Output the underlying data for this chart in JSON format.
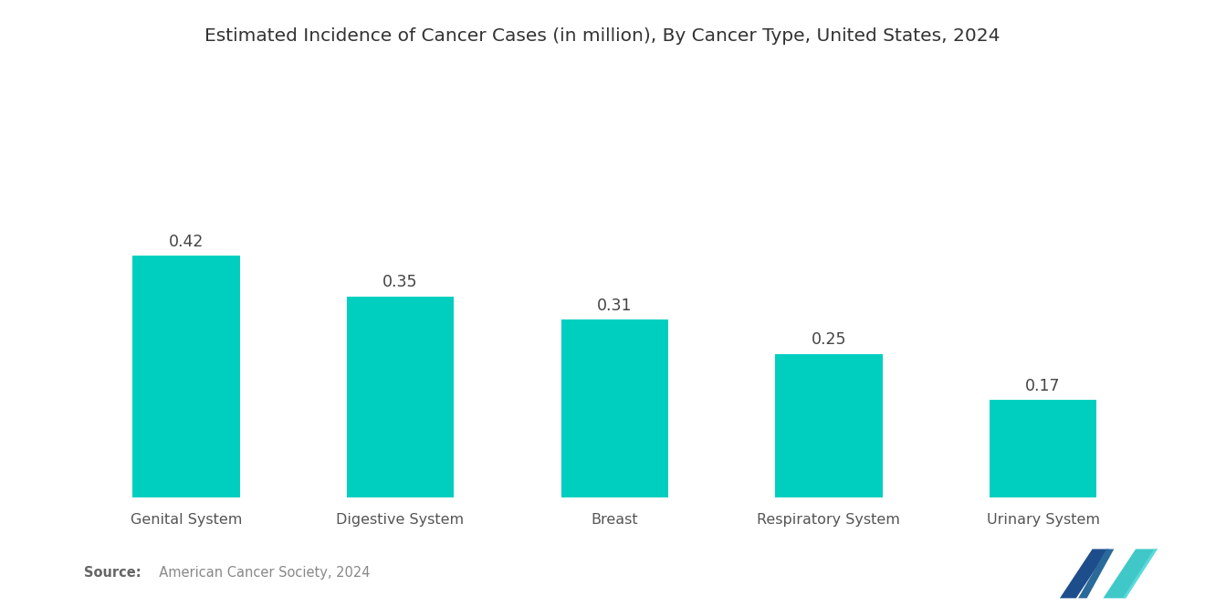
{
  "title": "Estimated Incidence of Cancer Cases (in million), By Cancer Type, United States, 2024",
  "categories": [
    "Genital System",
    "Digestive System",
    "Breast",
    "Respiratory System",
    "Urinary System"
  ],
  "values": [
    0.42,
    0.35,
    0.31,
    0.25,
    0.17
  ],
  "bar_color": "#00CFC0",
  "background_color": "#ffffff",
  "title_fontsize": 14.5,
  "label_fontsize": 11.5,
  "value_fontsize": 12.5,
  "source_bold": "Source:",
  "source_rest": "  American Cancer Society, 2024",
  "ylim": [
    0,
    0.58
  ],
  "bar_width": 0.5,
  "logo_left_color": "#1e4d8c",
  "logo_right_color": "#40c8c8",
  "logo_mid_color": "#2a6a9a"
}
